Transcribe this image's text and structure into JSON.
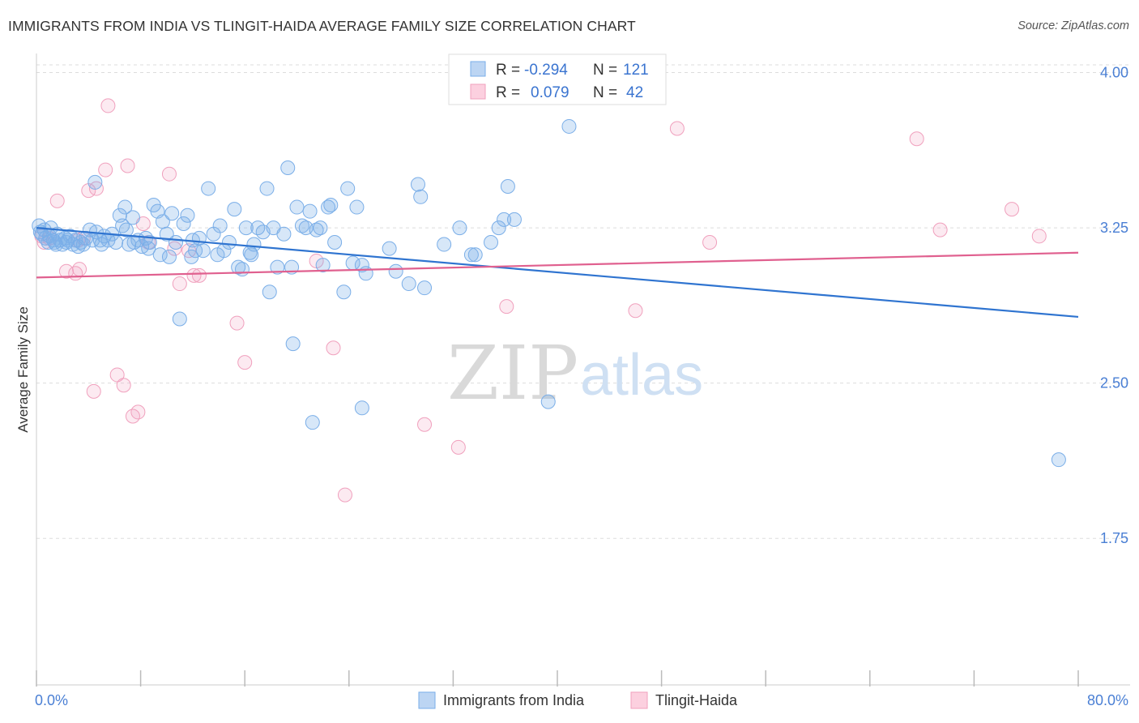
{
  "title": "IMMIGRANTS FROM INDIA VS TLINGIT-HAIDA AVERAGE FAMILY SIZE CORRELATION CHART",
  "source": "Source: ZipAtlas.com",
  "watermark": {
    "left": "ZIP",
    "right": "atlas"
  },
  "legend": {
    "rows": [
      {
        "r_label": "R =",
        "r_value": "-0.294",
        "n_label": "N =",
        "n_value": "121"
      },
      {
        "r_label": "R =",
        "r_value": "0.079",
        "n_label": "N =",
        "n_value": "42"
      }
    ]
  },
  "bottom_legend": [
    "Immigrants from India",
    "Tlingit-Haida"
  ],
  "chart_data": {
    "type": "scatter",
    "title": "IMMIGRANTS FROM INDIA VS TLINGIT-HAIDA AVERAGE FAMILY SIZE CORRELATION CHART",
    "xlabel": "",
    "ylabel": "Average Family Size",
    "xlim": [
      0,
      80
    ],
    "ylim": [
      1.05,
      4.1
    ],
    "x_tick_labels": [
      "0.0%",
      "80.0%"
    ],
    "y_ticks": [
      1.75,
      2.5,
      3.25,
      4.0
    ],
    "y_tick_labels": [
      "1.75",
      "2.50",
      "3.25",
      "4.00"
    ],
    "grid": true,
    "legend_position": "top-center",
    "colors": {
      "india": "#7aaee8",
      "tlingit": "#f0a0bd",
      "india_line": "#2f74d0",
      "tlingit_line": "#e0608f"
    },
    "series": [
      {
        "name": "Immigrants from India",
        "r": -0.294,
        "n": 121,
        "trend": {
          "x": [
            0,
            80
          ],
          "y": [
            3.25,
            2.82
          ]
        },
        "points": [
          [
            0.2,
            3.26
          ],
          [
            0.4,
            3.22
          ],
          [
            0.6,
            3.24
          ],
          [
            0.7,
            3.2
          ],
          [
            0.9,
            3.18
          ],
          [
            1.0,
            3.21
          ],
          [
            1.1,
            3.25
          ],
          [
            1.3,
            3.19
          ],
          [
            1.5,
            3.17
          ],
          [
            1.6,
            3.22
          ],
          [
            1.8,
            3.19
          ],
          [
            2.0,
            3.17
          ],
          [
            2.2,
            3.2
          ],
          [
            2.4,
            3.19
          ],
          [
            2.6,
            3.21
          ],
          [
            2.8,
            3.17
          ],
          [
            3.0,
            3.19
          ],
          [
            3.2,
            3.16
          ],
          [
            3.4,
            3.18
          ],
          [
            3.6,
            3.17
          ],
          [
            3.8,
            3.2
          ],
          [
            4.1,
            3.24
          ],
          [
            4.3,
            3.19
          ],
          [
            4.6,
            3.23
          ],
          [
            4.9,
            3.19
          ],
          [
            5.2,
            3.21
          ],
          [
            5.5,
            3.19
          ],
          [
            5.8,
            3.22
          ],
          [
            6.1,
            3.18
          ],
          [
            6.4,
            3.31
          ],
          [
            6.6,
            3.26
          ],
          [
            6.8,
            3.35
          ],
          [
            6.9,
            3.24
          ],
          [
            7.1,
            3.17
          ],
          [
            7.4,
            3.3
          ],
          [
            7.5,
            3.18
          ],
          [
            7.8,
            3.19
          ],
          [
            8.1,
            3.16
          ],
          [
            8.4,
            3.2
          ],
          [
            8.7,
            3.18
          ],
          [
            9.0,
            3.36
          ],
          [
            9.3,
            3.33
          ],
          [
            9.5,
            3.12
          ],
          [
            9.7,
            3.28
          ],
          [
            10.0,
            3.22
          ],
          [
            10.2,
            3.11
          ],
          [
            10.4,
            3.32
          ],
          [
            10.7,
            3.18
          ],
          [
            11.0,
            2.81
          ],
          [
            11.3,
            3.27
          ],
          [
            11.6,
            3.31
          ],
          [
            11.9,
            3.11
          ],
          [
            12.2,
            3.14
          ],
          [
            12.5,
            3.2
          ],
          [
            12.8,
            3.14
          ],
          [
            13.2,
            3.44
          ],
          [
            13.6,
            3.22
          ],
          [
            13.9,
            3.12
          ],
          [
            14.1,
            3.26
          ],
          [
            14.4,
            3.14
          ],
          [
            14.8,
            3.18
          ],
          [
            15.2,
            3.34
          ],
          [
            15.5,
            3.06
          ],
          [
            15.8,
            3.05
          ],
          [
            16.1,
            3.25
          ],
          [
            16.4,
            3.13
          ],
          [
            16.7,
            3.17
          ],
          [
            17.0,
            3.25
          ],
          [
            17.4,
            3.23
          ],
          [
            17.7,
            3.44
          ],
          [
            17.9,
            2.94
          ],
          [
            18.2,
            3.25
          ],
          [
            18.5,
            3.06
          ],
          [
            19.0,
            3.22
          ],
          [
            19.3,
            3.54
          ],
          [
            19.6,
            3.06
          ],
          [
            19.7,
            2.69
          ],
          [
            20.0,
            3.35
          ],
          [
            20.4,
            3.26
          ],
          [
            20.7,
            3.25
          ],
          [
            21.0,
            3.33
          ],
          [
            21.2,
            2.31
          ],
          [
            21.5,
            3.24
          ],
          [
            22.0,
            3.07
          ],
          [
            22.4,
            3.35
          ],
          [
            22.6,
            3.36
          ],
          [
            22.9,
            3.18
          ],
          [
            23.6,
            2.94
          ],
          [
            23.9,
            3.44
          ],
          [
            24.3,
            3.08
          ],
          [
            24.6,
            3.35
          ],
          [
            25.0,
            3.07
          ],
          [
            25.3,
            3.03
          ],
          [
            25.0,
            2.38
          ],
          [
            27.1,
            3.15
          ],
          [
            27.6,
            3.04
          ],
          [
            28.6,
            2.98
          ],
          [
            29.3,
            3.46
          ],
          [
            29.5,
            3.4
          ],
          [
            29.8,
            2.96
          ],
          [
            31.3,
            3.17
          ],
          [
            32.5,
            3.25
          ],
          [
            33.4,
            3.12
          ],
          [
            33.7,
            3.12
          ],
          [
            34.9,
            3.18
          ],
          [
            35.5,
            3.25
          ],
          [
            35.9,
            3.29
          ],
          [
            36.2,
            3.45
          ],
          [
            36.7,
            3.29
          ],
          [
            39.3,
            2.41
          ],
          [
            40.9,
            3.74
          ],
          [
            78.5,
            2.13
          ],
          [
            0.3,
            3.23
          ],
          [
            1.4,
            3.18
          ],
          [
            2.3,
            3.18
          ],
          [
            5.0,
            3.17
          ],
          [
            8.6,
            3.15
          ],
          [
            12.0,
            3.19
          ],
          [
            16.5,
            3.12
          ],
          [
            21.8,
            3.25
          ],
          [
            4.5,
            3.47
          ]
        ]
      },
      {
        "name": "Tlingit-Haida",
        "r": 0.079,
        "n": 42,
        "trend": {
          "x": [
            0,
            80
          ],
          "y": [
            3.01,
            3.13
          ]
        },
        "points": [
          [
            0.4,
            3.21
          ],
          [
            0.6,
            3.18
          ],
          [
            1.0,
            3.2
          ],
          [
            1.6,
            3.38
          ],
          [
            2.3,
            3.04
          ],
          [
            3.0,
            3.03
          ],
          [
            3.3,
            3.05
          ],
          [
            3.6,
            3.2
          ],
          [
            4.0,
            3.43
          ],
          [
            4.4,
            2.46
          ],
          [
            4.6,
            3.44
          ],
          [
            5.3,
            3.53
          ],
          [
            5.5,
            3.84
          ],
          [
            6.2,
            2.54
          ],
          [
            6.7,
            2.49
          ],
          [
            7.0,
            3.55
          ],
          [
            7.4,
            2.34
          ],
          [
            7.8,
            2.36
          ],
          [
            8.2,
            3.27
          ],
          [
            8.6,
            3.18
          ],
          [
            10.2,
            3.51
          ],
          [
            10.6,
            3.15
          ],
          [
            11.0,
            2.98
          ],
          [
            11.7,
            3.14
          ],
          [
            12.1,
            3.02
          ],
          [
            12.5,
            3.02
          ],
          [
            15.4,
            2.79
          ],
          [
            16.0,
            2.6
          ],
          [
            21.5,
            3.09
          ],
          [
            22.8,
            2.67
          ],
          [
            23.7,
            1.96
          ],
          [
            29.8,
            2.3
          ],
          [
            32.4,
            2.19
          ],
          [
            36.1,
            2.87
          ],
          [
            46.0,
            2.85
          ],
          [
            49.2,
            3.73
          ],
          [
            51.7,
            3.18
          ],
          [
            67.6,
            3.68
          ],
          [
            69.4,
            3.24
          ],
          [
            74.9,
            3.34
          ],
          [
            77.0,
            3.21
          ],
          [
            3.2,
            3.19
          ]
        ]
      }
    ]
  }
}
